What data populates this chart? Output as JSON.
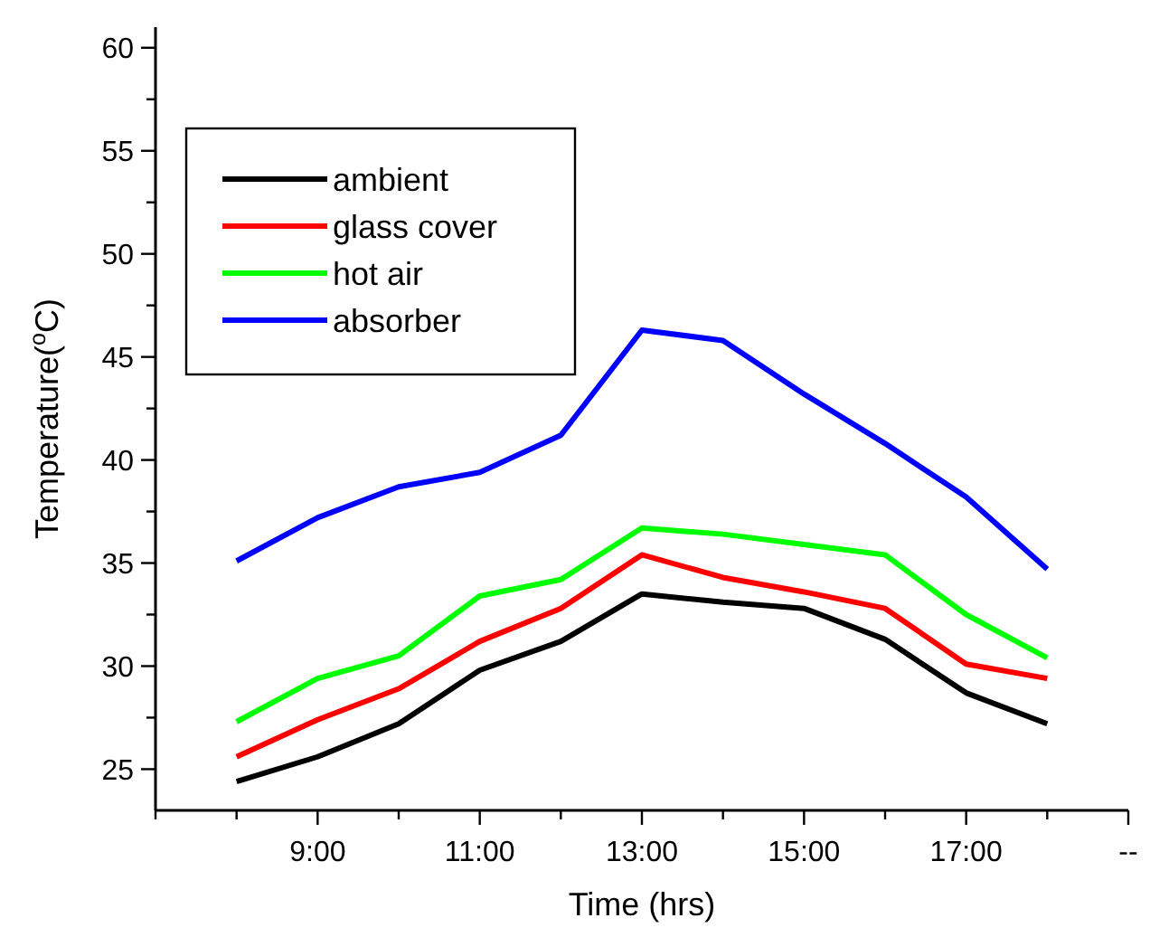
{
  "chart_data": {
    "type": "line",
    "xlabel": "Time (hrs)",
    "ylabel": "Temperature($^{o}$C)",
    "x": [
      8,
      9,
      10,
      11,
      12,
      13,
      14,
      15,
      16,
      17,
      18
    ],
    "series": [
      {
        "name": "ambient",
        "color": "#000000",
        "values": [
          24.4,
          25.6,
          27.2,
          29.8,
          31.2,
          33.5,
          33.1,
          32.8,
          31.3,
          28.7,
          27.2
        ]
      },
      {
        "name": "glass cover",
        "color": "#ff0000",
        "values": [
          25.6,
          27.4,
          28.9,
          31.2,
          32.8,
          35.4,
          34.3,
          33.6,
          32.8,
          30.1,
          29.4
        ]
      },
      {
        "name": "hot air",
        "color": "#00ff00",
        "values": [
          27.3,
          29.4,
          30.5,
          33.4,
          34.2,
          36.7,
          36.4,
          35.9,
          35.4,
          32.5,
          30.4
        ]
      },
      {
        "name": "absorber",
        "color": "#0000ff",
        "values": [
          35.1,
          37.2,
          38.7,
          39.4,
          41.2,
          46.3,
          45.8,
          43.2,
          40.8,
          38.2,
          34.7
        ]
      }
    ],
    "xlim": [
      7,
      19
    ],
    "xticks": [
      {
        "value": 7,
        "label": null
      },
      {
        "value": 8,
        "label": null
      },
      {
        "value": 9,
        "label": "9:00"
      },
      {
        "value": 10,
        "label": null
      },
      {
        "value": 11,
        "label": "11:00"
      },
      {
        "value": 12,
        "label": null
      },
      {
        "value": 13,
        "label": "13:00"
      },
      {
        "value": 14,
        "label": null
      },
      {
        "value": 15,
        "label": "15:00"
      },
      {
        "value": 16,
        "label": null
      },
      {
        "value": 17,
        "label": "17:00"
      },
      {
        "value": 18,
        "label": null
      },
      {
        "value": 19,
        "label": "--"
      }
    ],
    "ylim": [
      23,
      61
    ],
    "yticks": [
      25,
      {
        "value": 27.5,
        "label": null
      },
      30,
      {
        "value": 32.5,
        "label": null
      },
      35,
      {
        "value": 37.5,
        "label": null
      },
      40,
      {
        "value": 42.5,
        "label": null
      },
      45,
      {
        "value": 47.5,
        "label": null
      },
      50,
      {
        "value": 52.5,
        "label": null
      },
      55,
      {
        "value": 57.5,
        "label": null
      },
      60
    ],
    "grid": false,
    "legend": "top left",
    "marker": "none",
    "line_style": "solid"
  }
}
